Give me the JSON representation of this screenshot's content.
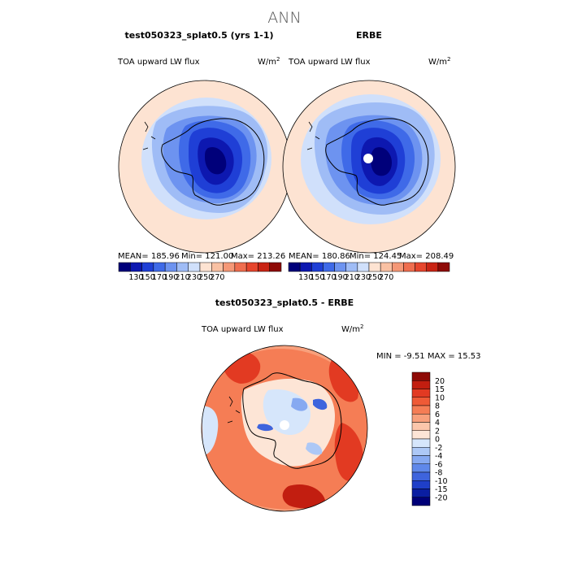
{
  "figure_title": "ANN",
  "panel_left": {
    "title": "test050323_splat0.5 (yrs 1-1)",
    "variable": "TOA upward LW flux",
    "units": "W/m",
    "units_exp": "2",
    "mean_label": "MEAN= 185.96",
    "min_label": "Min= 121.00",
    "max_label": "Max= 213.26"
  },
  "panel_right": {
    "title": "ERBE",
    "variable": "TOA upward LW flux",
    "units": "W/m",
    "units_exp": "2",
    "mean_label": "MEAN= 180.86",
    "min_label": "Min= 124.45",
    "max_label": "Max= 208.49"
  },
  "panel_diff": {
    "title": "test050323_splat0.5 - ERBE",
    "variable": "TOA upward LW flux",
    "units": "W/m",
    "units_exp": "2",
    "minmax_label": "MIN =   -9.51 MAX =   15.53"
  },
  "colorbar_abs": {
    "ticks": [
      "130",
      "150",
      "170",
      "190",
      "210",
      "230",
      "250",
      "270"
    ],
    "colors": [
      "#00007a",
      "#0d18b0",
      "#1f3fd6",
      "#3f6ae8",
      "#6d93f0",
      "#9fbcf6",
      "#d0e0fb",
      "#fde3d2",
      "#f9c1a3",
      "#f59877",
      "#ef6e4f",
      "#e6462d",
      "#c92414",
      "#8e0a06"
    ]
  },
  "colorbar_diff": {
    "ticks": [
      "20",
      "15",
      "10",
      "8",
      "6",
      "4",
      "2",
      "0",
      "-2",
      "-4",
      "-6",
      "-8",
      "-10",
      "-15",
      "-20"
    ],
    "colors": [
      "#8e0a06",
      "#c21e10",
      "#e23a22",
      "#ef5a36",
      "#f57d55",
      "#f8a07c",
      "#fbc6ab",
      "#fde5d6",
      "#d6e6fb",
      "#adc8f6",
      "#86a9f1",
      "#5f88ea",
      "#3e64dd",
      "#1f3fc8",
      "#0a1ea2",
      "#000078"
    ]
  }
}
